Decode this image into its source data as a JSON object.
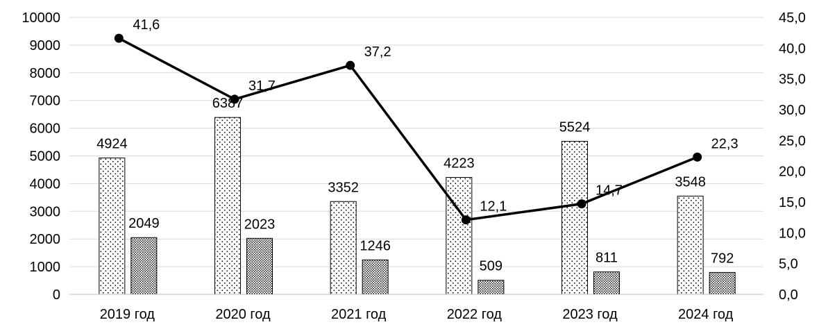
{
  "chart_data": {
    "type": "bar+line",
    "title": "",
    "categories": [
      "2019 год",
      "2020 год",
      "2021 год",
      "2022 год",
      "2023 год",
      "2024 год"
    ],
    "series": [
      {
        "type": "bar",
        "axis": "left",
        "pattern": "sparse-dots",
        "values": [
          4924,
          6387,
          3352,
          4223,
          5524,
          3548
        ]
      },
      {
        "type": "bar",
        "axis": "left",
        "pattern": "dense-dots",
        "values": [
          2049,
          2023,
          1246,
          509,
          811,
          792
        ]
      },
      {
        "type": "line",
        "axis": "right",
        "marker": "circle",
        "values": [
          41.6,
          31.7,
          37.2,
          12.1,
          14.7,
          22.3
        ],
        "labels": [
          "41,6",
          "31,7",
          "37,2",
          "12,1",
          "14,7",
          "22,3"
        ]
      }
    ],
    "left_axis": {
      "min": 0,
      "max": 10000,
      "step": 1000,
      "ticks": [
        "0",
        "1000",
        "2000",
        "3000",
        "4000",
        "5000",
        "6000",
        "7000",
        "8000",
        "9000",
        "10000"
      ]
    },
    "right_axis": {
      "min": 0,
      "max": 45,
      "step": 5,
      "ticks": [
        "0,0",
        "5,0",
        "10,0",
        "15,0",
        "20,0",
        "25,0",
        "30,0",
        "35,0",
        "40,0",
        "45,0"
      ]
    },
    "grid": true,
    "legend": "none",
    "colors": {
      "line": "#000000",
      "grid": "#d9d9d9",
      "bar_fill": "#ffffff",
      "dots": "#000000"
    }
  }
}
